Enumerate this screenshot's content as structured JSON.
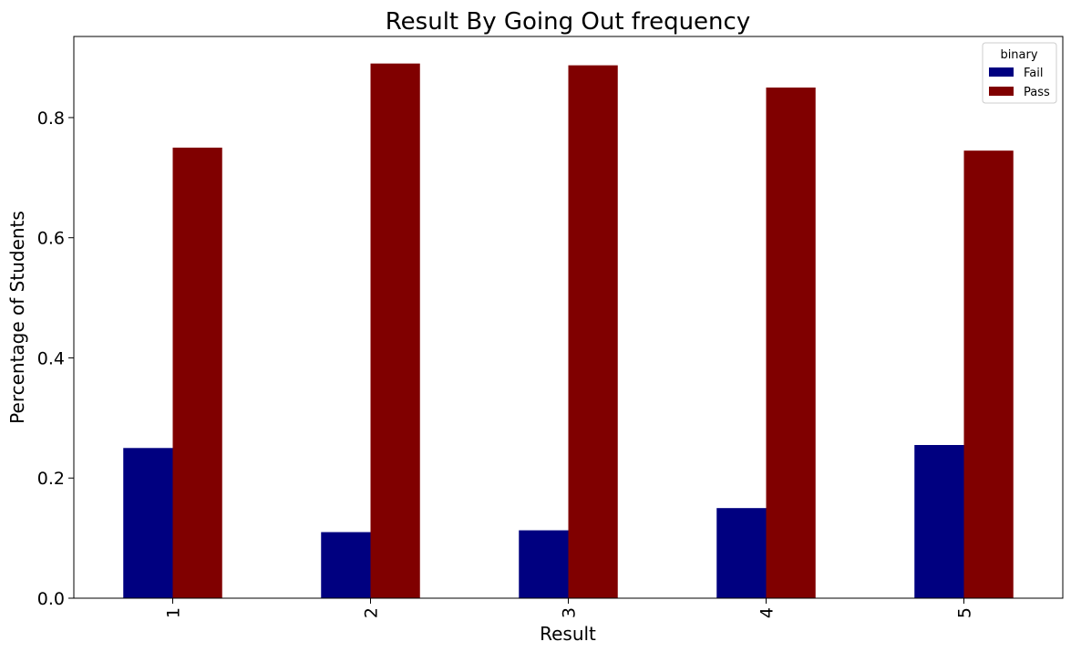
{
  "chart_data": {
    "type": "bar",
    "title": "Result By Going Out frequency",
    "xlabel": "Result",
    "ylabel": "Percentage of Students",
    "categories": [
      "1",
      "2",
      "3",
      "4",
      "5"
    ],
    "series": [
      {
        "name": "Fail",
        "color": "#000080",
        "values": [
          0.25,
          0.11,
          0.113,
          0.15,
          0.255
        ]
      },
      {
        "name": "Pass",
        "color": "#800000",
        "values": [
          0.75,
          0.89,
          0.887,
          0.85,
          0.745
        ]
      }
    ],
    "ylim": [
      0,
      0.935
    ],
    "yticks": [
      0.0,
      0.2,
      0.4,
      0.6,
      0.8
    ],
    "ytick_labels": [
      "0.0",
      "0.2",
      "0.4",
      "0.6",
      "0.8"
    ],
    "x_tick_rotation": "vertical",
    "grid": false,
    "legend": {
      "title": "binary",
      "placement": "top-right"
    }
  }
}
